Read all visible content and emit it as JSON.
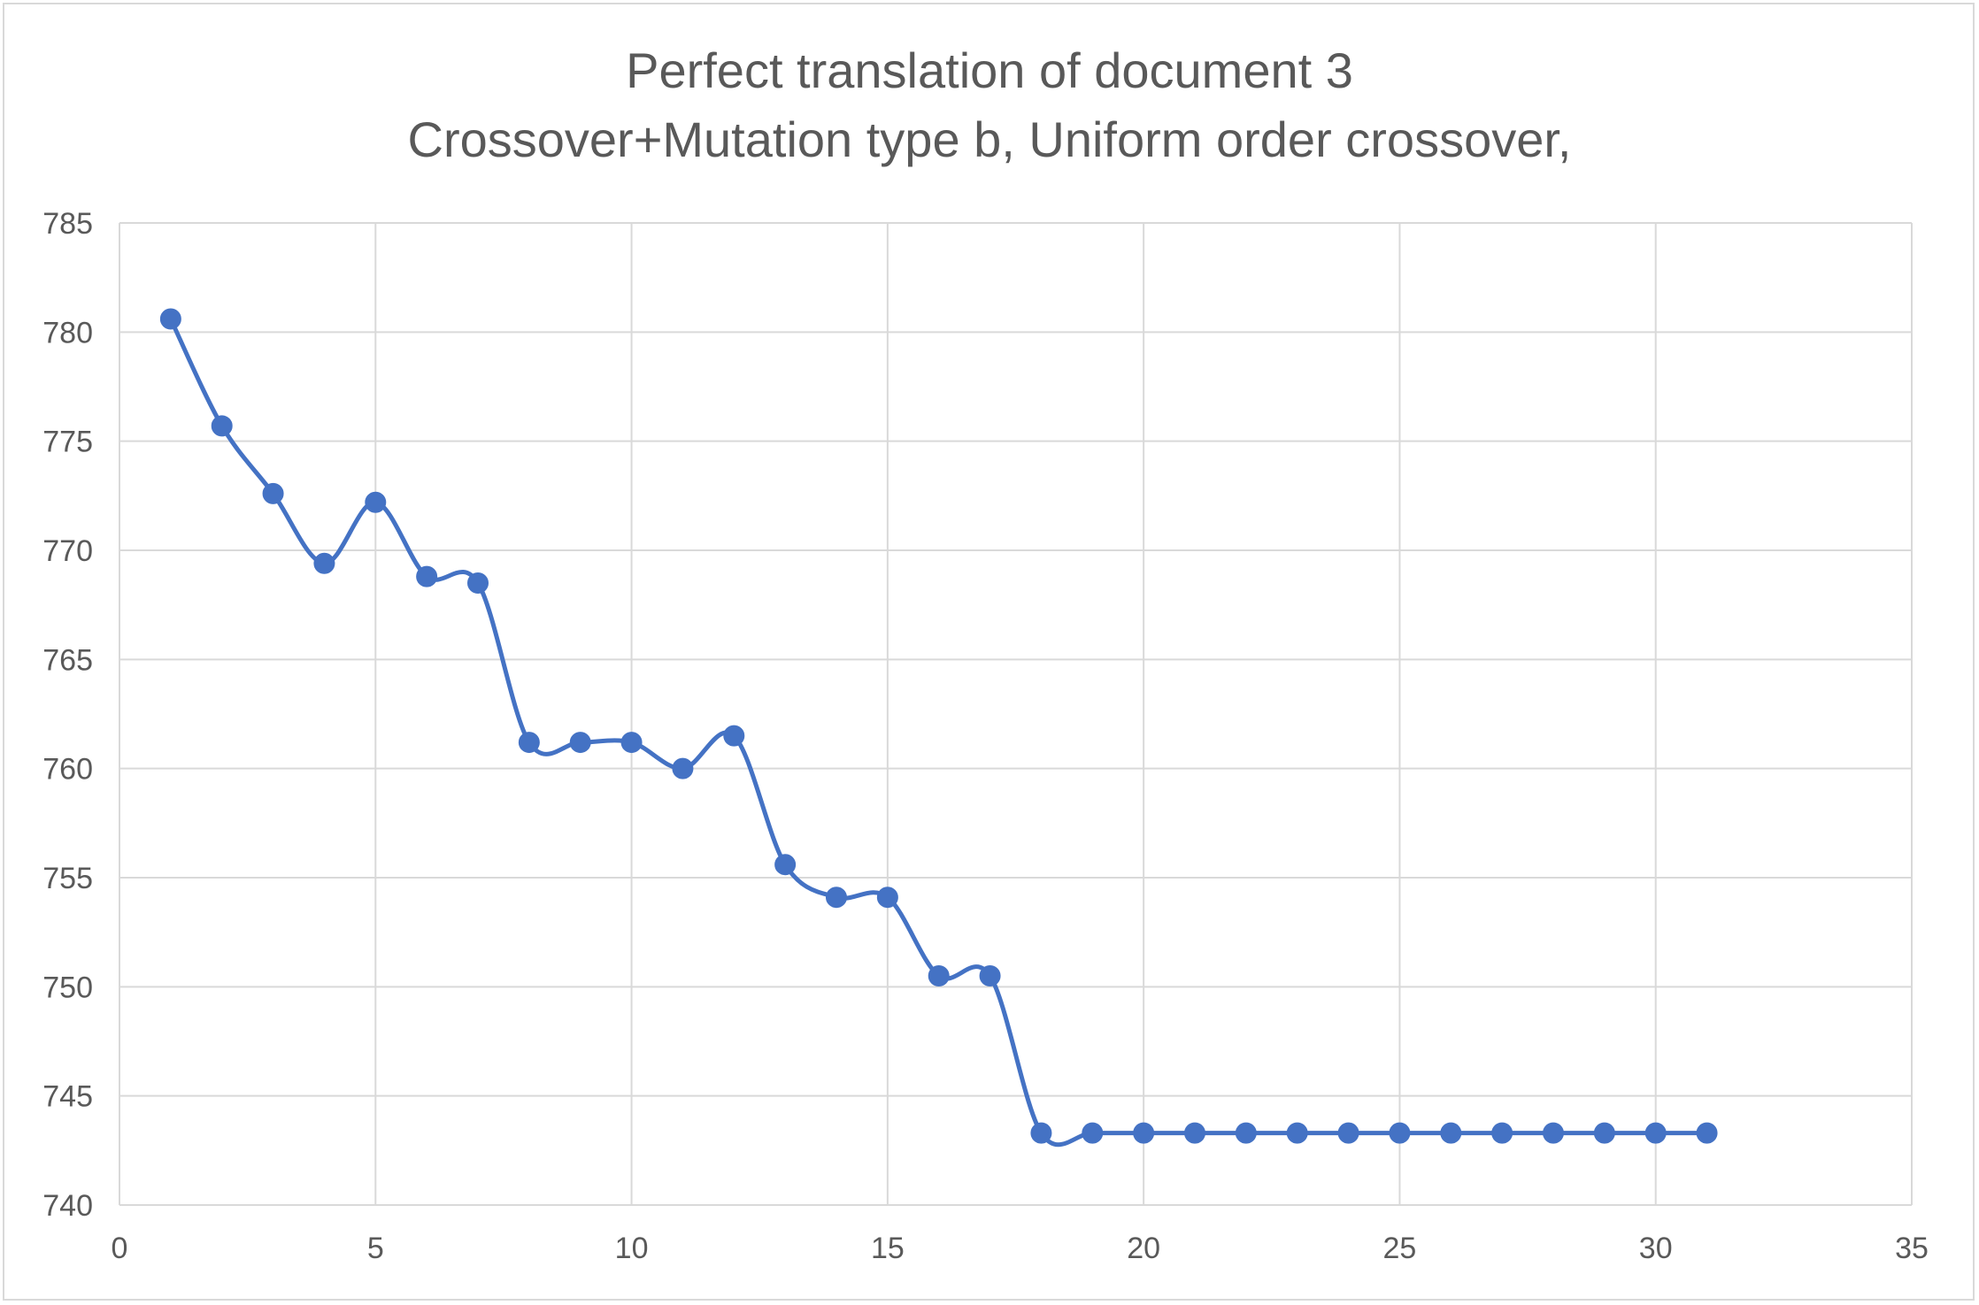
{
  "chart_data": {
    "type": "line",
    "title": "Perfect translation of document 3",
    "subtitle": "Crossover+Mutation type b, Uniform order crossover,",
    "xlabel": "",
    "ylabel": "",
    "xlim": [
      0,
      35
    ],
    "ylim": [
      740,
      785
    ],
    "xticks": [
      "0",
      "5",
      "10",
      "15",
      "20",
      "25",
      "30",
      "35"
    ],
    "yticks": [
      "740",
      "745",
      "750",
      "755",
      "760",
      "765",
      "770",
      "775",
      "780",
      "785"
    ],
    "grid": true,
    "smooth": true,
    "markers": true,
    "legend": "none",
    "series": [
      {
        "color": "#4472c4",
        "x": [
          1,
          2,
          3,
          4,
          5,
          6,
          7,
          8,
          9,
          10,
          11,
          12,
          13,
          14,
          15,
          16,
          17,
          18,
          19,
          20,
          21,
          22,
          23,
          24,
          25,
          26,
          27,
          28,
          29,
          30,
          31
        ],
        "y": [
          780.6,
          775.7,
          772.6,
          769.4,
          772.2,
          768.8,
          768.5,
          761.2,
          761.2,
          761.2,
          760.0,
          761.5,
          755.6,
          754.1,
          754.1,
          750.5,
          750.5,
          743.3,
          743.3,
          743.3,
          743.3,
          743.3,
          743.3,
          743.3,
          743.3,
          743.3,
          743.3,
          743.3,
          743.3,
          743.3,
          743.3
        ]
      }
    ]
  }
}
